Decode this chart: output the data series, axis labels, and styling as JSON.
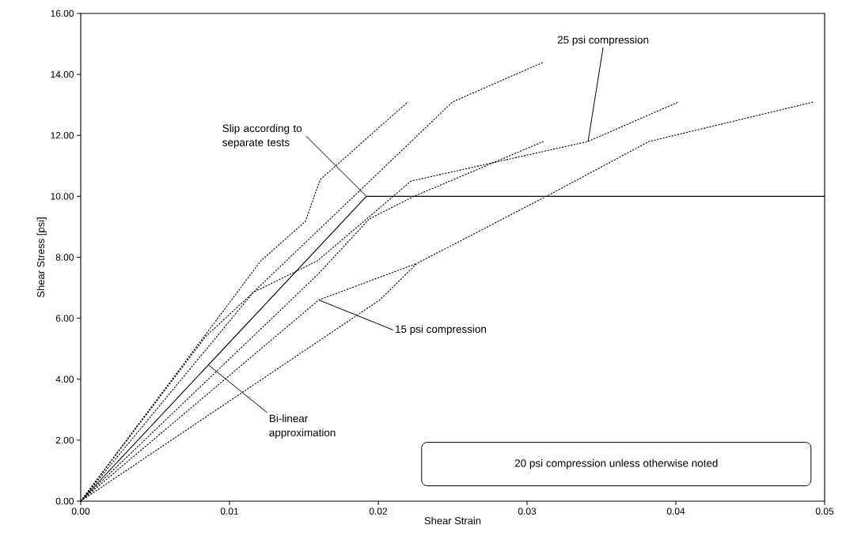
{
  "chart_data": {
    "type": "line",
    "xlabel": "Shear Strain",
    "ylabel": "Shear Stress [psi]",
    "xlim": [
      0,
      0.05
    ],
    "ylim": [
      0,
      16
    ],
    "xticks": [
      {
        "value": 0,
        "label": "0.00"
      },
      0.01,
      0.02,
      0.03,
      0.04,
      0.05
    ],
    "yticks": [
      {
        "value": 0,
        "label": "0.00"
      },
      {
        "value": 2,
        "label": "2.00"
      },
      {
        "value": 4,
        "label": "4.00"
      },
      {
        "value": 6,
        "label": "6.00"
      },
      {
        "value": 8,
        "label": "8.00"
      },
      {
        "value": 10,
        "label": "10.00"
      },
      {
        "value": 12,
        "label": "12.00"
      },
      {
        "value": 14,
        "label": "14.00"
      },
      {
        "value": 16,
        "label": "16.00"
      }
    ],
    "grid": false,
    "line_style": "dashed",
    "series": [
      {
        "color": "#000000",
        "x": [
          0,
          0.0084,
          0.0121,
          0.0151,
          0.0161,
          0.022
        ],
        "values": [
          0,
          5.47,
          7.88,
          9.18,
          10.55,
          13.1
        ]
      },
      {
        "color": "#000000",
        "x": [
          0,
          0.0084,
          0.0116,
          0.025,
          0.0311
        ],
        "values": [
          0,
          5.4,
          6.85,
          13.1,
          14.4
        ]
      },
      {
        "color": "#000000",
        "x": [
          0,
          0.0116,
          0.0159,
          0.0222,
          0.0341,
          0.0402
        ],
        "values": [
          0,
          6.85,
          7.88,
          10.5,
          11.8,
          13.1
        ]
      },
      {
        "color": "#000000",
        "x": [
          0,
          0.0159,
          0.0194,
          0.0224,
          0.0311
        ],
        "values": [
          0,
          7.42,
          9.26,
          10.0,
          11.8
        ]
      },
      {
        "color": "#000000",
        "x": [
          0,
          0.016,
          0.0226
        ],
        "values": [
          0,
          6.6,
          7.8
        ]
      },
      {
        "color": "#000000",
        "x": [
          0,
          0.0201,
          0.0226,
          0.0313,
          0.0382,
          0.0493
        ],
        "values": [
          0,
          6.6,
          7.8,
          10.0,
          11.8,
          13.1
        ]
      },
      {
        "color": "#000000",
        "line_style": "solid",
        "x": [
          0,
          0.0192,
          0.05
        ],
        "values": [
          0,
          10,
          10
        ]
      }
    ],
    "annotations": [
      {
        "text": "Slip according to separate tests",
        "x": 0.0192,
        "y": 10
      },
      {
        "text": "25 psi compression",
        "x": 0.0341,
        "y": 11.8
      },
      {
        "text": "15 psi compression",
        "x": 0.016,
        "y": 6.6
      },
      {
        "text": "Bi-linear approximation",
        "x": 0.0086,
        "y": 4.46
      },
      "20 psi compression unless otherwise noted"
    ]
  }
}
